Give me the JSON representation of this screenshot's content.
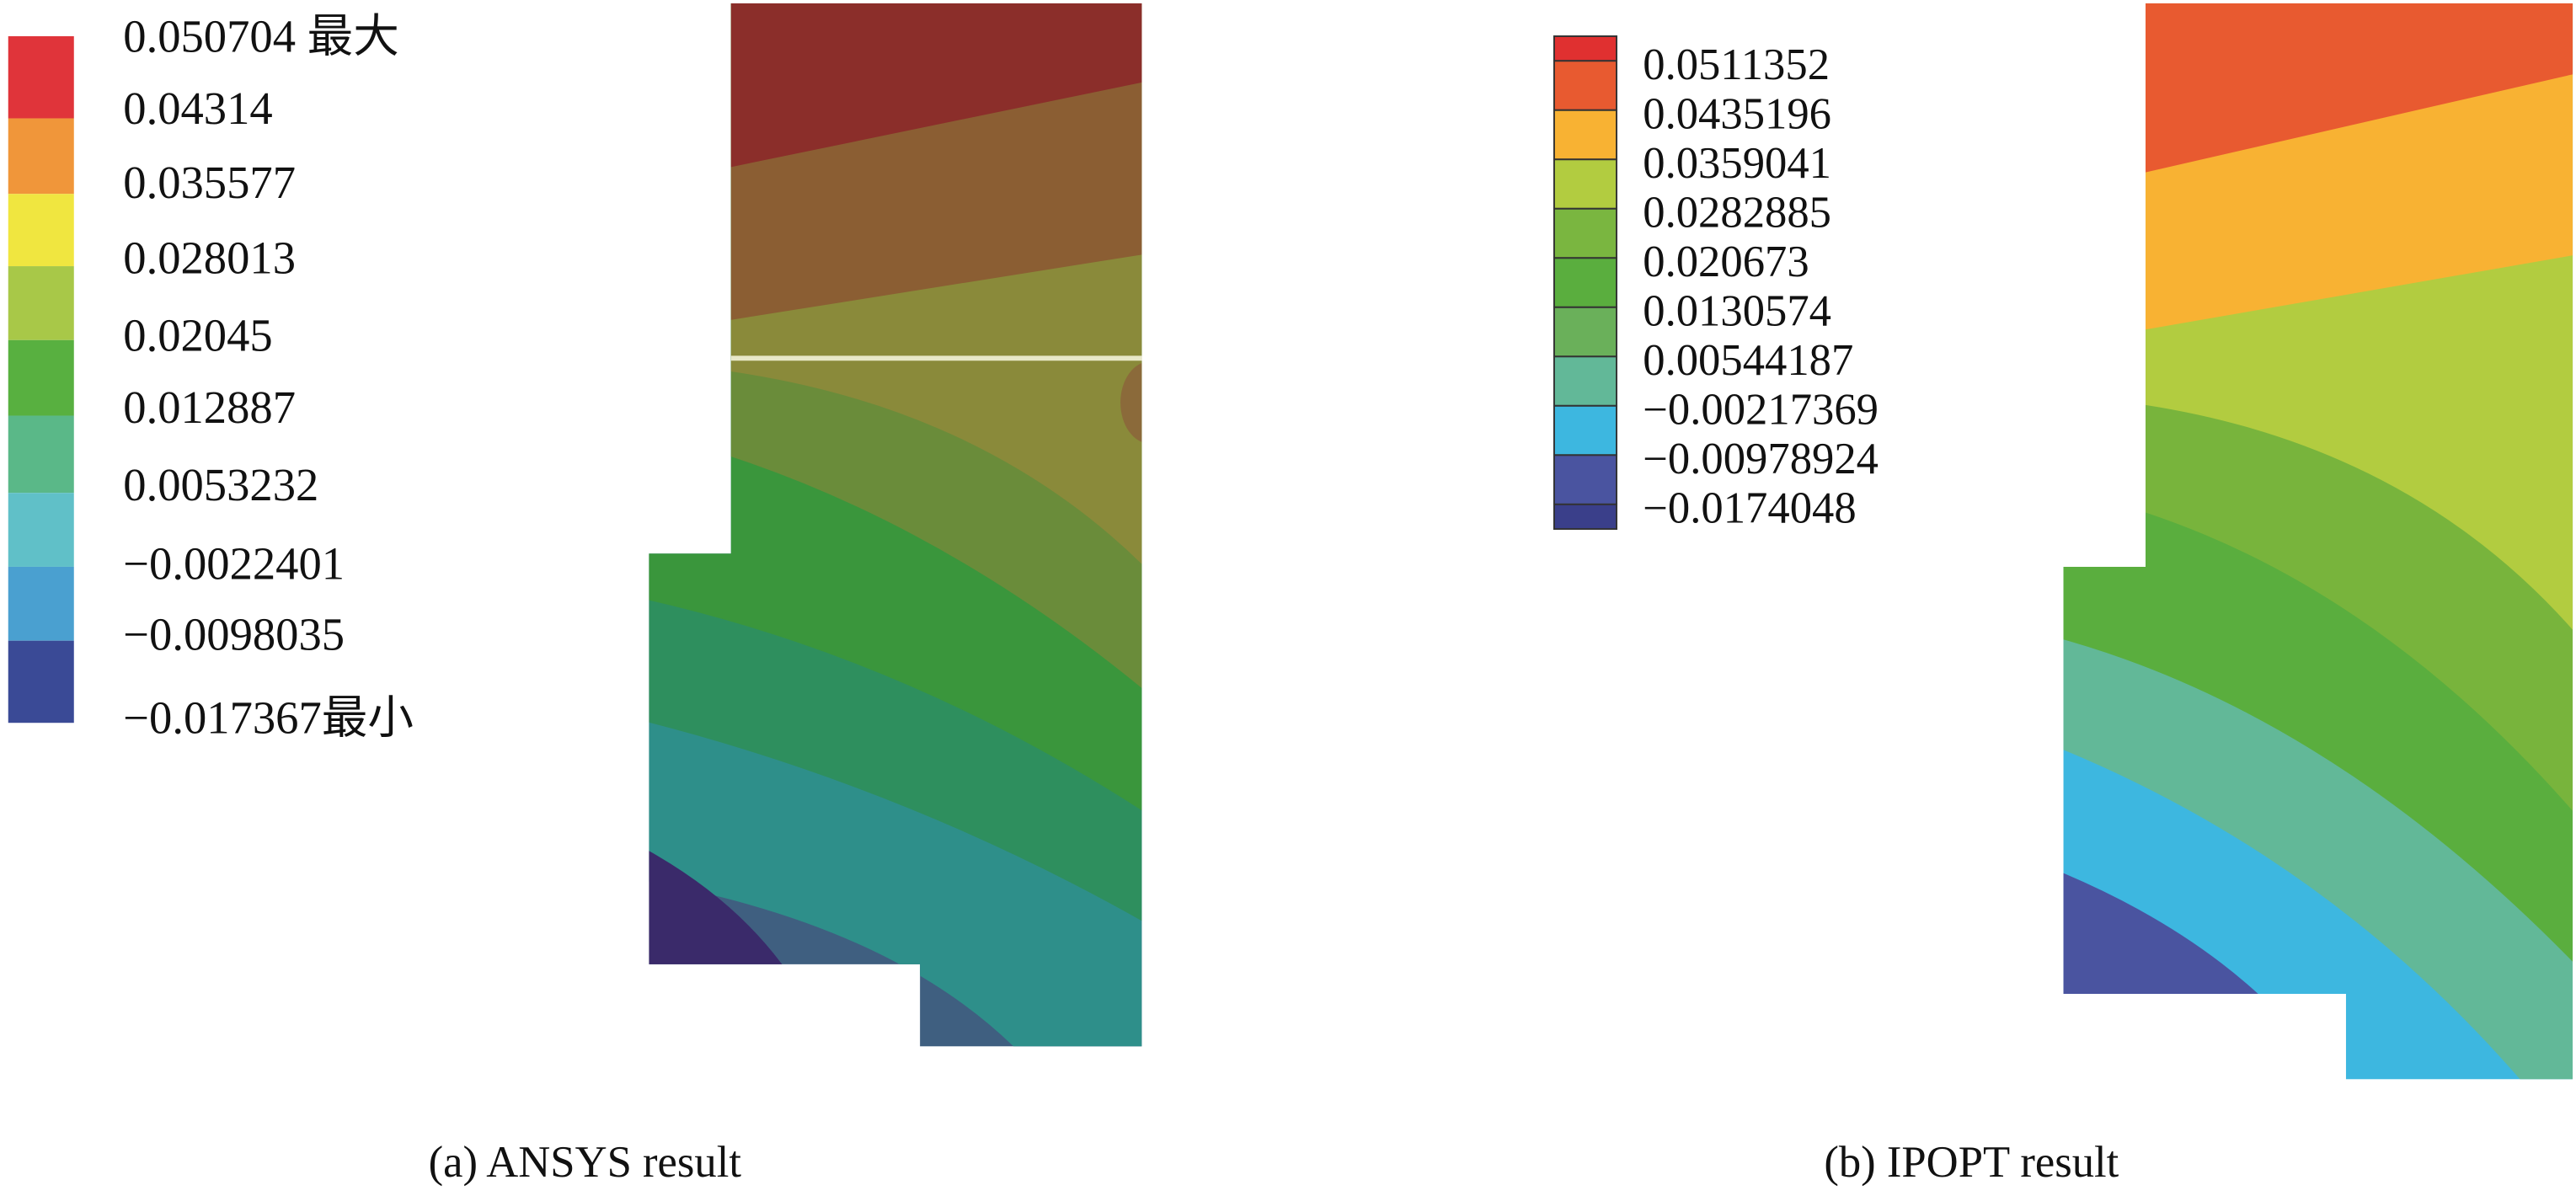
{
  "panels": [
    {
      "caption": "(a) ANSYS result",
      "legend_labels": [
        "0.050704 最大",
        "0.04314",
        "0.035577",
        "0.028013",
        "0.02045",
        "0.012887",
        "0.0053232",
        "−0.0022401",
        "−0.0098035",
        "−0.017367最小"
      ],
      "legend_colors": [
        "#e0343a",
        "#f0963a",
        "#f0e640",
        "#a8c848",
        "#58b040",
        "#5ab888",
        "#60c0c8",
        "#4aa0d0",
        "#3a4a96"
      ]
    },
    {
      "caption": "(b) IPOPT result",
      "legend_labels": [
        "0.0511352",
        "0.0435196",
        "0.0359041",
        "0.0282885",
        "0.020673",
        "0.0130574",
        "0.00544187",
        "−0.00217369",
        "−0.00978924",
        "−0.0174048"
      ],
      "legend_colors": [
        "#e03030",
        "#e85a30",
        "#f8b233",
        "#b2cc40",
        "#7ab640",
        "#5aae3e",
        "#6ab05a",
        "#62b898",
        "#3db7e0",
        "#4a54a0",
        "#3a3f8a"
      ]
    }
  ]
}
